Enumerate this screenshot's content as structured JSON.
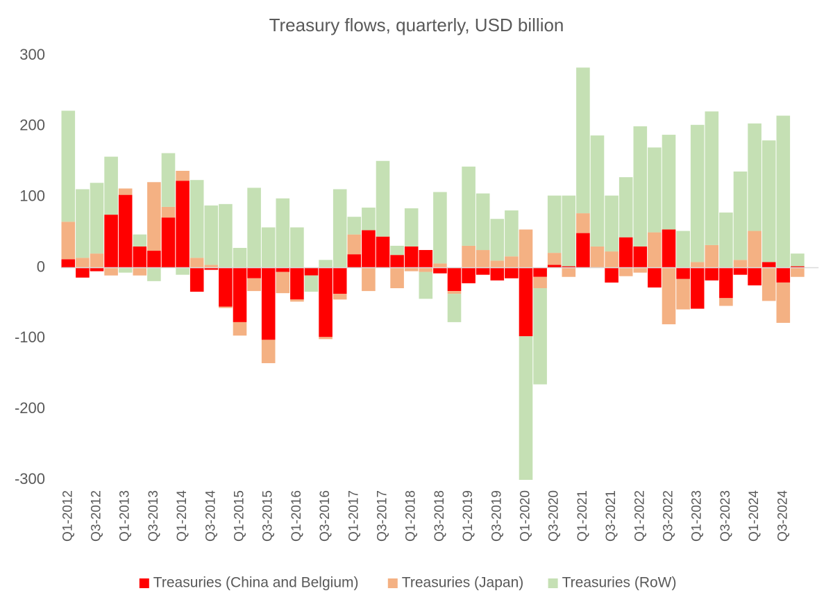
{
  "chart_data": {
    "type": "stacked_bar",
    "title": "Treasury flows, quarterly, USD billion",
    "categories": [
      "Q1-2012",
      null,
      "Q3-2012",
      null,
      "Q1-2013",
      null,
      "Q3-2013",
      null,
      "Q1-2014",
      null,
      "Q3-2014",
      null,
      "Q1-2015",
      null,
      "Q3-2015",
      null,
      "Q1-2016",
      null,
      "Q3-2016",
      null,
      "Q1-2017",
      null,
      "Q3-2017",
      null,
      "Q1-2018",
      null,
      "Q3-2018",
      null,
      "Q1-2019",
      null,
      "Q3-2019",
      null,
      "Q1-2020",
      null,
      "Q3-2020",
      null,
      "Q1-2021",
      null,
      "Q3-2021",
      null,
      "Q1-2022",
      null,
      "Q3-2022",
      null,
      "Q1-2023",
      null,
      "Q3-2023",
      null,
      "Q1-2024",
      null,
      "Q3-2024",
      null
    ],
    "series": [
      {
        "name": "Treasuries (China and Belgium)",
        "color": "#ff0000",
        "values": [
          12,
          -14,
          -5,
          75,
          103,
          30,
          24,
          71,
          123,
          -34,
          -3,
          -55,
          -77,
          -15,
          -102,
          -6,
          -45,
          -11,
          -98,
          -37,
          19,
          53,
          44,
          18,
          30,
          25,
          -8,
          -33,
          -22,
          -10,
          -18,
          -15,
          -97,
          -13,
          4,
          2,
          49,
          0,
          -21,
          43,
          30,
          -28,
          54,
          -16,
          -58,
          -18,
          -43,
          -10,
          -25,
          8,
          -21,
          2
        ]
      },
      {
        "name": "Treasuries (Japan)",
        "color": "#f4b183",
        "values": [
          53,
          14,
          20,
          -11,
          9,
          -11,
          97,
          15,
          14,
          14,
          4,
          -2,
          -19,
          -18,
          -33,
          -30,
          -3,
          0,
          -3,
          -8,
          28,
          -33,
          0,
          -29,
          -5,
          -6,
          6,
          -4,
          31,
          25,
          10,
          16,
          54,
          -16,
          17,
          -13,
          28,
          30,
          23,
          -12,
          -7,
          50,
          -80,
          -43,
          8,
          32,
          -11,
          11,
          52,
          -47,
          -57,
          -13
        ]
      },
      {
        "name": "Treasuries (RoW)",
        "color": "#c5e0b4",
        "values": [
          157,
          97,
          100,
          82,
          -7,
          17,
          -19,
          76,
          -10,
          110,
          84,
          90,
          28,
          113,
          57,
          98,
          57,
          -23,
          11,
          111,
          25,
          32,
          107,
          13,
          54,
          -38,
          101,
          -40,
          112,
          80,
          59,
          65,
          -203,
          -136,
          81,
          100,
          206,
          157,
          79,
          85,
          170,
          120,
          134,
          52,
          194,
          189,
          78,
          125,
          152,
          172,
          215,
          18
        ]
      }
    ],
    "ylim": [
      -300,
      300
    ],
    "yticks": [
      -300,
      -200,
      -100,
      0,
      100,
      200,
      300
    ],
    "legend": "bottom"
  }
}
